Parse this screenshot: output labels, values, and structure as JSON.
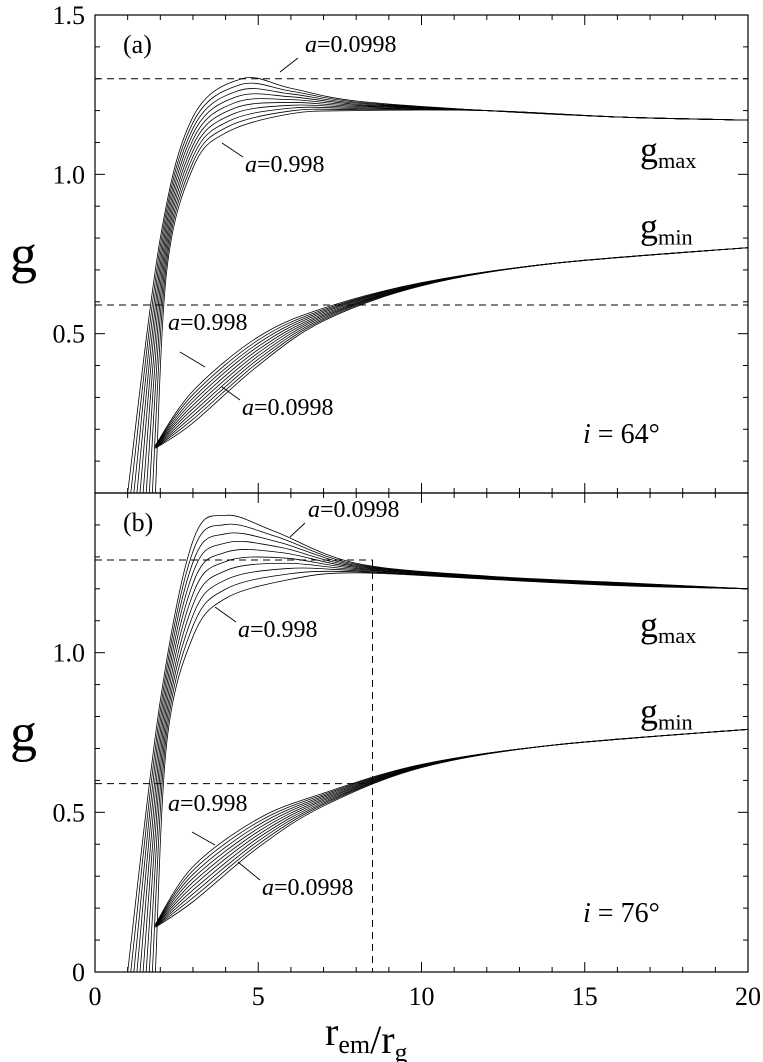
{
  "chart_data": [
    {
      "type": "line",
      "panel_label": "(a)",
      "inclination_label": "i = 64°",
      "xlabel": "r_em/r_g",
      "ylabel": "g",
      "xlim": [
        0,
        20
      ],
      "ylim": [
        0,
        1.5
      ],
      "yticks": [
        "0.5",
        "1.0",
        "1.5"
      ],
      "xticks": [],
      "curve_labels": {
        "gmax": "gmax",
        "gmin": "gmin"
      },
      "spin_labels": {
        "top": "a=0.0998",
        "upper_low": "a=0.998",
        "lower_high": "a=0.998",
        "lower_low": "a=0.0998"
      },
      "spin_values": [
        0.0998,
        0.998
      ],
      "dashed_lines": [
        {
          "y": 1.3
        },
        {
          "y": 0.59
        }
      ],
      "series": [
        {
          "group": "g_max",
          "a": 0.0998,
          "x": [
            1.0,
            2.0,
            3.0,
            4.5,
            6.0,
            8.0,
            12.0,
            16.0,
            20.0
          ],
          "y": [
            0.0,
            0.8,
            1.18,
            1.3,
            1.27,
            1.23,
            1.2,
            1.18,
            1.17
          ]
        },
        {
          "group": "g_max",
          "a": 0.998,
          "x": [
            1.85,
            2.2,
            3.0,
            4.0,
            6.0,
            8.0,
            12.0,
            16.0,
            20.0
          ],
          "y": [
            0.0,
            0.7,
            1.02,
            1.13,
            1.19,
            1.2,
            1.2,
            1.18,
            1.17
          ]
        },
        {
          "group": "g_min",
          "a": 0.998,
          "x": [
            1.85,
            3.0,
            5.0,
            7.0,
            10.0,
            14.0,
            20.0
          ],
          "y": [
            0.15,
            0.32,
            0.49,
            0.58,
            0.66,
            0.72,
            0.77
          ]
        },
        {
          "group": "g_min",
          "a": 0.0998,
          "x": [
            1.85,
            3.0,
            5.0,
            7.0,
            10.0,
            14.0,
            20.0
          ],
          "y": [
            0.14,
            0.22,
            0.4,
            0.54,
            0.65,
            0.72,
            0.77
          ]
        }
      ]
    },
    {
      "type": "line",
      "panel_label": "(b)",
      "inclination_label": "i = 76°",
      "xlabel": "r_em/r_g",
      "ylabel": "g",
      "xlim": [
        0,
        20
      ],
      "ylim": [
        0,
        1.5
      ],
      "yticks": [
        "0",
        "0.5",
        "1.0"
      ],
      "xticks": [
        "0",
        "5",
        "10",
        "15",
        "20"
      ],
      "curve_labels": {
        "gmax": "gmax",
        "gmin": "gmin"
      },
      "spin_labels": {
        "top": "a=0.0998",
        "upper_low": "a=0.998",
        "lower_high": "a=0.998",
        "lower_low": "a=0.0998"
      },
      "spin_values": [
        0.0998,
        0.998
      ],
      "dashed_lines": [
        {
          "y": 1.29,
          "x_end": 8.5
        },
        {
          "y": 0.59,
          "x_end": 8.5
        }
      ],
      "vertical_dashed_x": 8.5,
      "series": [
        {
          "group": "g_max",
          "a": 0.0998,
          "x": [
            1.0,
            2.0,
            3.0,
            4.0,
            5.5,
            8.0,
            12.0,
            16.0,
            20.0
          ],
          "y": [
            0.0,
            0.85,
            1.35,
            1.43,
            1.38,
            1.28,
            1.24,
            1.22,
            1.2
          ]
        },
        {
          "group": "g_max",
          "a": 0.998,
          "x": [
            1.85,
            2.2,
            3.0,
            4.0,
            6.0,
            8.0,
            12.0,
            16.0,
            20.0
          ],
          "y": [
            0.0,
            0.72,
            1.05,
            1.17,
            1.23,
            1.25,
            1.23,
            1.21,
            1.2
          ]
        },
        {
          "group": "g_min",
          "a": 0.998,
          "x": [
            1.85,
            3.0,
            5.0,
            7.0,
            10.0,
            14.0,
            20.0
          ],
          "y": [
            0.15,
            0.33,
            0.48,
            0.56,
            0.65,
            0.71,
            0.76
          ]
        },
        {
          "group": "g_min",
          "a": 0.0998,
          "x": [
            1.85,
            3.0,
            5.0,
            7.0,
            10.0,
            14.0,
            20.0
          ],
          "y": [
            0.14,
            0.22,
            0.39,
            0.52,
            0.64,
            0.71,
            0.76
          ]
        }
      ]
    }
  ]
}
